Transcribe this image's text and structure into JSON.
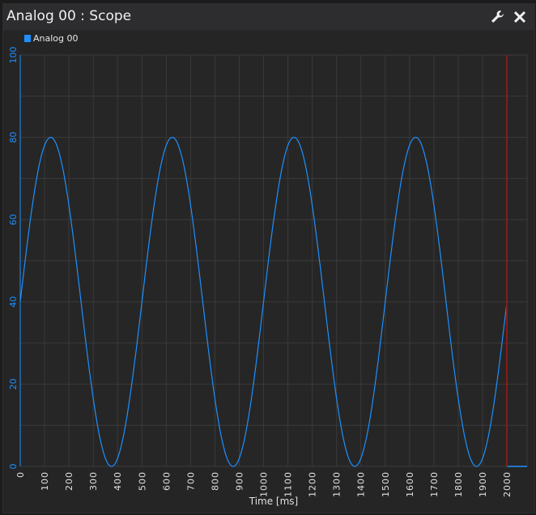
{
  "window": {
    "title": "Analog 00 : Scope",
    "icons": [
      "wrench-icon",
      "close-icon"
    ]
  },
  "colors": {
    "series": "#1e90ff",
    "cursor": "#8b1a1a",
    "grid": "#3a3a3a",
    "axis_text": "#1e90ff",
    "x_text": "#e0e0e0"
  },
  "chart_data": {
    "type": "line",
    "title": "",
    "xlabel": "Time [ms]",
    "ylabel": "",
    "xlim": [
      0,
      2083
    ],
    "ylim": [
      0,
      100
    ],
    "x_ticks": [
      "0",
      "100",
      "200",
      "300",
      "400",
      "500",
      "600",
      "700",
      "800",
      "900",
      "1000",
      "1100",
      "1200",
      "1300",
      "1400",
      "1500",
      "1600",
      "1700",
      "1800",
      "1900",
      "2000"
    ],
    "y_ticks": [
      "0",
      "20",
      "40",
      "60",
      "80",
      "100"
    ],
    "grid": true,
    "legend": "top-left",
    "series": [
      {
        "name": "Analog 00",
        "description_formula": "sine",
        "offset": 40,
        "amplitude": 40,
        "period_ms": 500,
        "x_start": 0,
        "x_end": 2000,
        "after_end_value": 0
      }
    ],
    "cursor_x": 2000
  }
}
